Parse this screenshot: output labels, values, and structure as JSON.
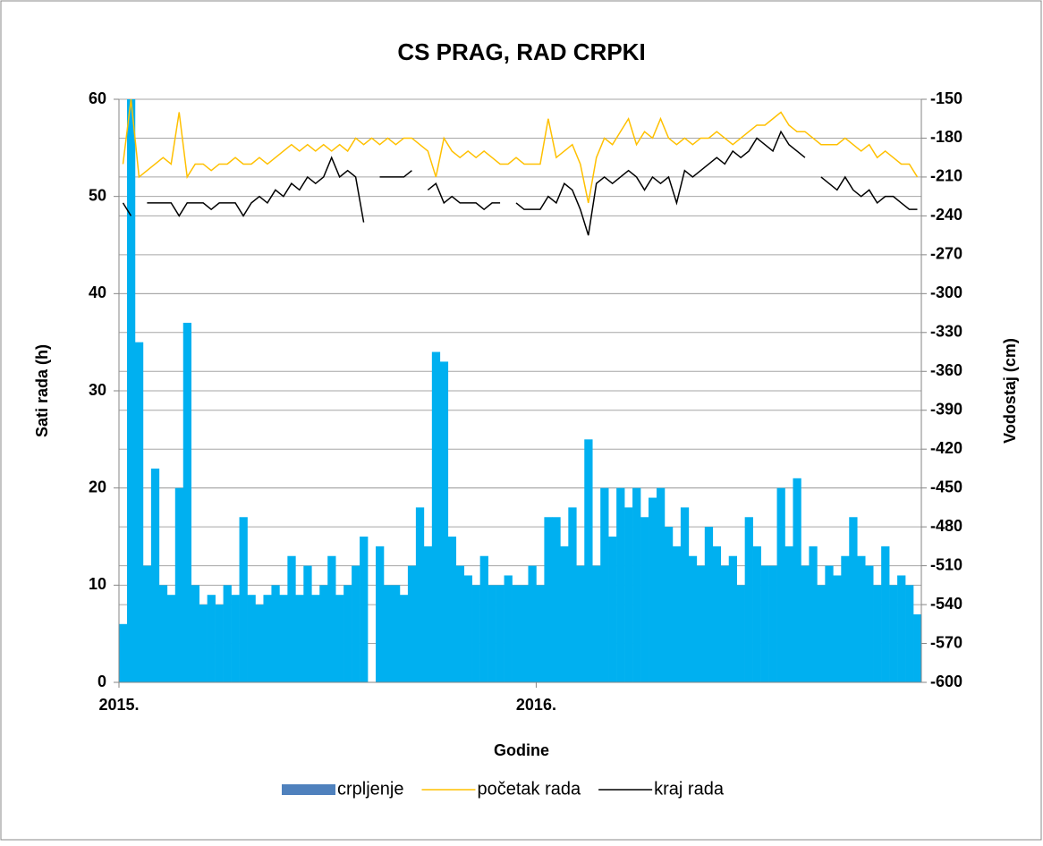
{
  "chart_data": {
    "type": "bar_line",
    "title": "CS  PRAG, RAD CRPKI",
    "xlabel": "Godine",
    "ylabel": "Sati rada (h)",
    "y2label": "Vodostaj (cm)",
    "categories": [
      "2015.",
      null,
      null,
      null,
      null,
      null,
      null,
      null,
      null,
      null,
      null,
      null,
      null,
      null,
      null,
      null,
      null,
      null,
      null,
      null,
      null,
      null,
      null,
      null,
      null,
      null,
      null,
      null,
      null,
      null,
      null,
      null,
      null,
      null,
      null,
      null,
      null,
      null,
      null,
      null,
      null,
      null,
      null,
      null,
      null,
      null,
      null,
      null,
      null,
      null,
      null,
      null,
      "2016.",
      null,
      null,
      null,
      null,
      null,
      null,
      null,
      null,
      null,
      null,
      null,
      null,
      null,
      null,
      null,
      null,
      null,
      null,
      null,
      null,
      null,
      null,
      null,
      null,
      null,
      null,
      null,
      null,
      null,
      null,
      null,
      null,
      null,
      null,
      null,
      null,
      null,
      null,
      null,
      null,
      null,
      null,
      null,
      null,
      null,
      null,
      null
    ],
    "ylim": [
      0,
      60
    ],
    "yticks": [
      0,
      10,
      20,
      30,
      40,
      50,
      60
    ],
    "y2lim": [
      -600,
      -150
    ],
    "y2ticks": [
      -600,
      -570,
      -540,
      -510,
      -480,
      -450,
      -420,
      -390,
      -360,
      -330,
      -300,
      -270,
      -240,
      -210,
      -180,
      -150
    ],
    "grid": true,
    "legend": "bottom",
    "series": [
      {
        "name": "crpljenje",
        "type": "bar",
        "color": "#00b0f0",
        "values": [
          6,
          60,
          35,
          12,
          22,
          10,
          9,
          20,
          37,
          10,
          8,
          9,
          8,
          10,
          9,
          17,
          9,
          8,
          9,
          10,
          9,
          13,
          9,
          12,
          9,
          10,
          13,
          9,
          10,
          12,
          15,
          0,
          14,
          10,
          10,
          9,
          12,
          18,
          14,
          34,
          33,
          15,
          12,
          11,
          10,
          13,
          10,
          10,
          11,
          10,
          10,
          12,
          10,
          17,
          17,
          14,
          18,
          12,
          25,
          12,
          20,
          15,
          20,
          18,
          20,
          17,
          19,
          20,
          16,
          14,
          18,
          13,
          12,
          16,
          14,
          12,
          13,
          10,
          17,
          14,
          12,
          12,
          20,
          14,
          21,
          12,
          14,
          10,
          12,
          11,
          13,
          17,
          13,
          12,
          10,
          14,
          10,
          11,
          10,
          7
        ]
      },
      {
        "name": "početak rada",
        "type": "line",
        "axis": "y2",
        "color": "#ffc000",
        "values": [
          -200,
          -150,
          -210,
          -205,
          -200,
          -195,
          -200,
          -160,
          -210,
          -200,
          -200,
          -205,
          -200,
          -200,
          -195,
          -200,
          -200,
          -195,
          -200,
          -195,
          -190,
          -185,
          -190,
          -185,
          -190,
          -185,
          -190,
          -185,
          -190,
          -180,
          -185,
          -180,
          -185,
          -180,
          -185,
          -180,
          -180,
          -185,
          -190,
          -210,
          -180,
          -190,
          -195,
          -190,
          -195,
          -190,
          -195,
          -200,
          -200,
          -195,
          -200,
          -200,
          -200,
          -165,
          -195,
          -190,
          -185,
          -200,
          -230,
          -195,
          -180,
          -185,
          -175,
          -165,
          -185,
          -175,
          -180,
          -165,
          -180,
          -185,
          -180,
          -185,
          -180,
          -180,
          -175,
          -180,
          -185,
          -180,
          -175,
          -170,
          -170,
          -165,
          -160,
          -170,
          -175,
          -175,
          -180,
          -185,
          -185,
          -185,
          -180,
          -185,
          -190,
          -185,
          -195,
          -190,
          -195,
          -200,
          -200,
          -210
        ]
      },
      {
        "name": "kraj rada",
        "type": "line",
        "axis": "y2",
        "color": "#000000",
        "values": [
          -230,
          -240,
          null,
          -230,
          -230,
          -230,
          -230,
          -240,
          -230,
          -230,
          -230,
          -235,
          -230,
          -230,
          -230,
          -240,
          -230,
          -225,
          -230,
          -220,
          -225,
          -215,
          -220,
          -210,
          -215,
          -210,
          -195,
          -210,
          -205,
          -210,
          -245,
          null,
          -210,
          -210,
          -210,
          -210,
          -205,
          null,
          -220,
          -215,
          -230,
          -225,
          -230,
          -230,
          -230,
          -235,
          -230,
          -230,
          null,
          -230,
          -235,
          -235,
          -235,
          -225,
          -230,
          -215,
          -220,
          -235,
          -255,
          -215,
          -210,
          -215,
          -210,
          -205,
          -210,
          -220,
          -210,
          -215,
          -210,
          -230,
          -205,
          -210,
          -205,
          -200,
          -195,
          -200,
          -190,
          -195,
          -190,
          -180,
          -185,
          -190,
          -175,
          -185,
          -190,
          -195,
          null,
          -210,
          -215,
          -220,
          -210,
          -220,
          -225,
          -220,
          -230,
          -225,
          -225,
          -230,
          -235,
          -235
        ]
      }
    ]
  }
}
